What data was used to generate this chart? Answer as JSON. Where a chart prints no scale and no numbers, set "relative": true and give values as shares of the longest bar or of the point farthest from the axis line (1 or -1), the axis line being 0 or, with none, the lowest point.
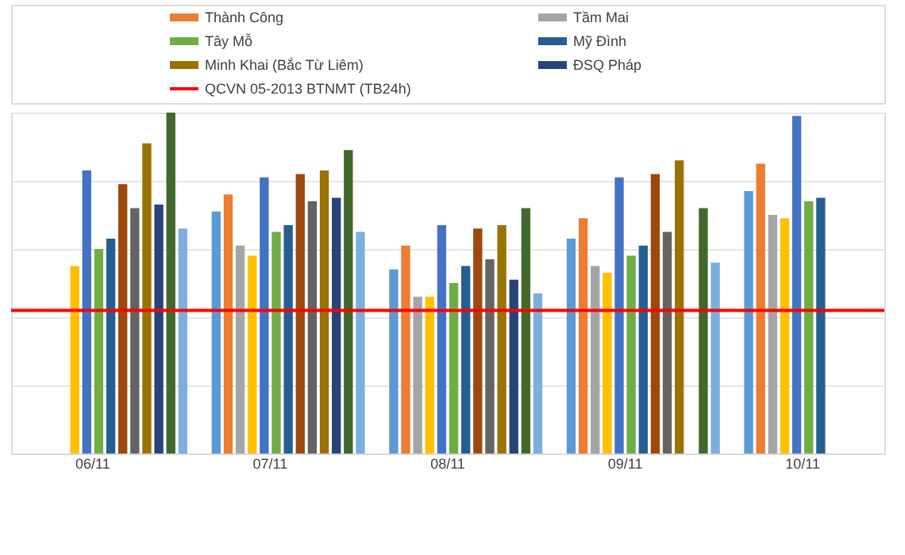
{
  "chart_data": {
    "type": "bar",
    "relative": true,
    "legend": "top",
    "grid": "y",
    "categories": [
      "06/11",
      "07/11",
      "08/11",
      "09/11",
      "10/11"
    ],
    "series": [
      {
        "color": "#5b9bd5",
        "values": [
          null,
          0.71,
          0.54,
          0.63,
          0.77
        ]
      },
      {
        "name": "Thành Công",
        "color": "#ed7d31",
        "values": [
          null,
          0.76,
          0.61,
          0.69,
          0.85
        ]
      },
      {
        "name": "Tầm Mai",
        "color": "#a5a5a5",
        "values": [
          null,
          0.61,
          0.46,
          0.55,
          0.7
        ]
      },
      {
        "color": "#ffc000",
        "values": [
          0.55,
          0.58,
          0.46,
          0.53,
          0.69
        ]
      },
      {
        "color": "#4472c4",
        "values": [
          0.83,
          0.81,
          0.67,
          0.81,
          0.99
        ]
      },
      {
        "name": "Tây Mỗ",
        "color": "#70ad47",
        "values": [
          0.6,
          0.65,
          0.5,
          0.58,
          0.74
        ]
      },
      {
        "name": "Mỹ Đình",
        "color": "#255e91",
        "values": [
          0.63,
          0.67,
          0.55,
          0.61,
          0.75
        ]
      },
      {
        "color": "#9e480e",
        "values": [
          0.79,
          0.82,
          0.66,
          0.82,
          null
        ]
      },
      {
        "color": "#636363",
        "values": [
          0.72,
          0.74,
          0.57,
          0.65,
          null
        ]
      },
      {
        "name": "Minh Khai (Bắc Từ Liêm)",
        "color": "#997300",
        "values": [
          0.91,
          0.83,
          0.67,
          0.86,
          null
        ]
      },
      {
        "name": "ĐSQ Pháp",
        "color": "#264478",
        "values": [
          0.73,
          0.75,
          0.51,
          null,
          null
        ]
      },
      {
        "color": "#43682b",
        "values": [
          1.0,
          0.89,
          0.72,
          0.72,
          null
        ]
      },
      {
        "color": "#7cafdd",
        "values": [
          0.66,
          0.65,
          0.47,
          0.56,
          null
        ]
      }
    ],
    "ref_lines": [
      {
        "axis": "y",
        "value": 0.42,
        "label": "QCVN 05-2013 BTNMT (TB24h)",
        "color": "#ff0000"
      }
    ]
  }
}
